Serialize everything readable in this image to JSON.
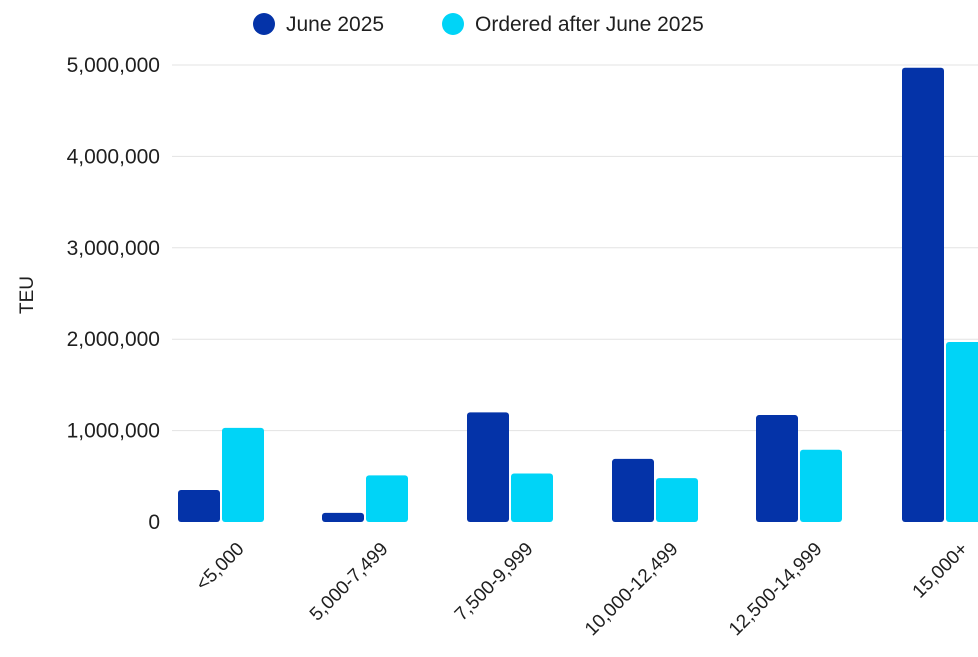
{
  "chart_data": {
    "type": "bar",
    "title": "",
    "xlabel": "",
    "ylabel": "TEU",
    "ylim": [
      0,
      5000000
    ],
    "yticks": [
      0,
      1000000,
      2000000,
      3000000,
      4000000,
      5000000
    ],
    "ytick_labels": [
      "0",
      "1,000,000",
      "2,000,000",
      "3,000,000",
      "4,000,000",
      "5,000,000"
    ],
    "grid": true,
    "legend_position": "top",
    "categories": [
      "<5,000",
      "5,000-7,499",
      "7,500-9,999",
      "10,000-12,499",
      "12,500-14,999",
      "15,000+"
    ],
    "series": [
      {
        "name": "June 2025",
        "color": "#0433a8",
        "values": [
          350000,
          100000,
          1200000,
          690000,
          1170000,
          4970000
        ]
      },
      {
        "name": "Ordered after June 2025",
        "color": "#00d4f7",
        "values": [
          1030000,
          510000,
          530000,
          480000,
          790000,
          1970000
        ]
      }
    ]
  }
}
